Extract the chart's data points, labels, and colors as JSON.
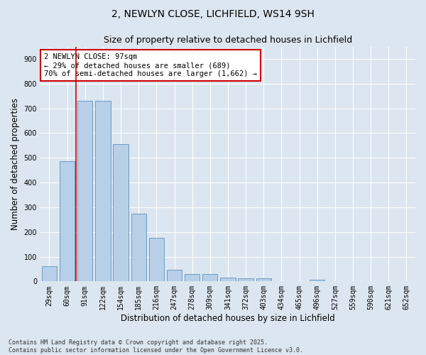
{
  "title1": "2, NEWLYN CLOSE, LICHFIELD, WS14 9SH",
  "title2": "Size of property relative to detached houses in Lichfield",
  "xlabel": "Distribution of detached houses by size in Lichfield",
  "ylabel": "Number of detached properties",
  "categories": [
    "29sqm",
    "60sqm",
    "91sqm",
    "122sqm",
    "154sqm",
    "185sqm",
    "216sqm",
    "247sqm",
    "278sqm",
    "309sqm",
    "341sqm",
    "372sqm",
    "403sqm",
    "434sqm",
    "465sqm",
    "496sqm",
    "527sqm",
    "559sqm",
    "590sqm",
    "621sqm",
    "652sqm"
  ],
  "values": [
    62,
    485,
    730,
    730,
    555,
    275,
    175,
    48,
    30,
    30,
    14,
    12,
    12,
    0,
    0,
    6,
    0,
    0,
    0,
    0,
    0
  ],
  "bar_color": "#b8cfe8",
  "bar_edgecolor": "#6a9cc4",
  "vline_index": 2,
  "vline_color": "#cc0000",
  "annotation_text": "2 NEWLYN CLOSE: 97sqm\n← 29% of detached houses are smaller (689)\n70% of semi-detached houses are larger (1,662) →",
  "annotation_box_edgecolor": "#cc0000",
  "annotation_box_facecolor": "#ffffff",
  "ylim": [
    0,
    950
  ],
  "yticks": [
    0,
    100,
    200,
    300,
    400,
    500,
    600,
    700,
    800,
    900
  ],
  "background_color": "#dce6f0",
  "plot_background": "#dce6f0",
  "footer_line1": "Contains HM Land Registry data © Crown copyright and database right 2025.",
  "footer_line2": "Contains public sector information licensed under the Open Government Licence v3.0.",
  "title_fontsize": 10,
  "subtitle_fontsize": 9,
  "tick_fontsize": 7,
  "ylabel_fontsize": 8.5,
  "xlabel_fontsize": 8.5,
  "annotation_fontsize": 7.5,
  "footer_fontsize": 6
}
